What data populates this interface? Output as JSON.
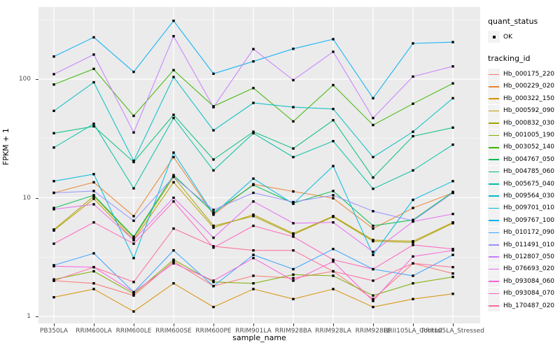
{
  "chart_data": {
    "type": "line",
    "title": "",
    "xlabel": "sample_name",
    "ylabel": "FPKM + 1",
    "y_scale": "log10",
    "y_ticks": [
      1,
      10,
      100
    ],
    "ylim": [
      1,
      400
    ],
    "grid": "on",
    "panel_bg": "#EBEBEB",
    "grid_color": "#FFFFFF",
    "point_color": "#000000",
    "legend": {
      "position": "right",
      "quant_status_title": "quant_status",
      "quant_status_items": [
        "OK"
      ],
      "tracking_title": "tracking_id"
    },
    "categories": [
      "PB350LA",
      "RRIM600LA",
      "RRIM600LE",
      "RRIM600SE",
      "RRIM600PE",
      "RRIM901LA",
      "RRIM928BA",
      "RRIM928LA",
      "RRIM928LE",
      "RRII105LA_Control",
      "RRII105LA_Stressed"
    ],
    "series": [
      {
        "name": "Hb_000175_220",
        "color": "#F8766D",
        "values": [
          2.0,
          1.9,
          1.5,
          2.9,
          1.8,
          2.2,
          2.1,
          2.4,
          1.4,
          2.8,
          2.3
        ]
      },
      {
        "name": "Hb_000229_020",
        "color": "#EA8331",
        "values": [
          11.0,
          13.5,
          7.0,
          22.0,
          7.2,
          13.0,
          11.3,
          9.9,
          5.5,
          8.2,
          11.0
        ]
      },
      {
        "name": "Hb_000322_150",
        "color": "#D89000",
        "values": [
          1.45,
          1.7,
          1.1,
          1.9,
          1.2,
          1.7,
          1.4,
          1.7,
          1.2,
          1.4,
          1.55
        ]
      },
      {
        "name": "Hb_000592_090",
        "color": "#C09B00",
        "values": [
          5.3,
          9.8,
          4.4,
          13.5,
          5.6,
          7.2,
          5.0,
          7.0,
          4.4,
          4.3,
          6.2
        ]
      },
      {
        "name": "Hb_000832_030",
        "color": "#A3A500",
        "values": [
          5.4,
          10.3,
          4.6,
          15.0,
          5.8,
          7.0,
          4.9,
          6.9,
          4.3,
          4.2,
          6.1
        ]
      },
      {
        "name": "Hb_001005_190",
        "color": "#7CAE00",
        "values": [
          2.05,
          2.4,
          1.55,
          3.0,
          1.95,
          1.9,
          2.25,
          2.2,
          1.5,
          1.9,
          2.15
        ]
      },
      {
        "name": "Hb_003052_140",
        "color": "#39B600",
        "values": [
          90,
          122,
          49,
          119,
          59,
          84,
          44,
          89,
          41,
          62,
          92
        ]
      },
      {
        "name": "Hb_004767_050",
        "color": "#00BB4E",
        "values": [
          8.2,
          10.5,
          4.7,
          15.5,
          7.5,
          12.8,
          9.0,
          11.4,
          5.8,
          6.5,
          11.2
        ]
      },
      {
        "name": "Hb_004785_060",
        "color": "#00BF7D",
        "values": [
          35,
          40,
          20,
          50,
          21,
          36,
          26,
          45,
          14.8,
          33,
          39
        ]
      },
      {
        "name": "Hb_005675_040",
        "color": "#00C1A3",
        "values": [
          26.5,
          42,
          12,
          47,
          17,
          35,
          22,
          30,
          11.9,
          17,
          28
        ]
      },
      {
        "name": "Hb_009564_030",
        "color": "#00BFC4",
        "values": [
          54,
          94,
          20.5,
          104,
          37,
          63,
          58,
          56,
          22,
          36,
          69
        ]
      },
      {
        "name": "Hb_009701_010",
        "color": "#00BAE0",
        "values": [
          13.8,
          15.8,
          3.1,
          24,
          7.3,
          14.5,
          8.9,
          18.5,
          3.3,
          9.6,
          13.8
        ]
      },
      {
        "name": "Hb_009767_100",
        "color": "#00B0F6",
        "values": [
          155,
          225,
          115,
          310,
          111,
          141,
          180,
          217,
          69,
          200,
          205
        ]
      },
      {
        "name": "Hb_010172_090",
        "color": "#35A2FF",
        "values": [
          2.7,
          3.4,
          1.6,
          3.6,
          1.8,
          3.3,
          2.5,
          3.7,
          2.5,
          2.2,
          3.3
        ]
      },
      {
        "name": "Hb_011491_010",
        "color": "#9590FF",
        "values": [
          11.0,
          11.4,
          6.4,
          15.0,
          7.9,
          11.0,
          9.2,
          10.5,
          7.7,
          6.4,
          11.0
        ]
      },
      {
        "name": "Hb_012807_050",
        "color": "#C77CFF",
        "values": [
          110,
          161,
          35.5,
          230,
          58,
          179,
          98,
          170,
          47,
          105,
          128
        ]
      },
      {
        "name": "Hb_076693_020",
        "color": "#E76BF3",
        "values": [
          8.0,
          8.8,
          4.4,
          10.0,
          4.6,
          9.3,
          6.1,
          6.2,
          3.5,
          6.3,
          7.3
        ]
      },
      {
        "name": "Hb_093084_060",
        "color": "#FA62DB",
        "values": [
          2.65,
          2.6,
          1.6,
          2.8,
          2.0,
          3.1,
          2.0,
          2.9,
          1.35,
          3.2,
          3.6
        ]
      },
      {
        "name": "Hb_093084_070",
        "color": "#FF62BC",
        "values": [
          4.1,
          6.2,
          4.1,
          9.3,
          3.8,
          5.8,
          4.7,
          3.0,
          2.5,
          4.0,
          3.7
        ]
      },
      {
        "name": "Hb_170487_020",
        "color": "#FF6A98",
        "values": [
          2.0,
          2.6,
          1.95,
          5.5,
          3.9,
          3.6,
          3.6,
          2.4,
          2.0,
          2.8,
          2.6
        ]
      }
    ]
  }
}
